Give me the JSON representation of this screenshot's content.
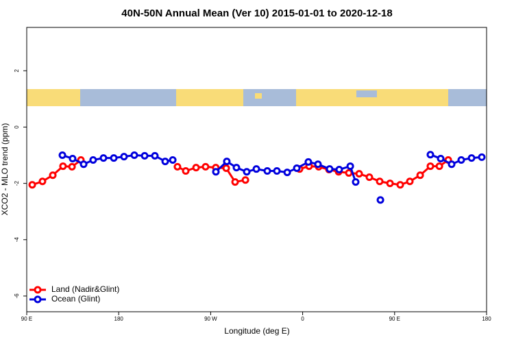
{
  "chart_data": {
    "type": "line",
    "title": "40N-50N Annual Mean (Ver 10)   2015-01-01 to 2020-12-18",
    "x_label": "Longitude (deg E)",
    "y_label": "XCO2 - MLO trend (ppm)",
    "xlim": [
      90,
      540
    ],
    "xticks": [
      {
        "value": 90,
        "label": "90 E"
      },
      180,
      {
        "value": 270,
        "label": "90 W"
      },
      {
        "value": 360,
        "label": "0"
      },
      {
        "value": 450,
        "label": "90 E"
      },
      {
        "value": 540,
        "label": "180"
      }
    ],
    "ylim": [
      -6.56,
      3.54
    ],
    "yticks": [
      2,
      0,
      -2,
      -4,
      -6
    ],
    "legend": "bottom-left",
    "series": [
      {
        "name": "Land (Nadir&Glint)",
        "color": "#ff0000",
        "x": [
          95.4,
          105.4,
          115.5,
          125.5,
          134.3,
          143,
          null,
          237.5,
          245.6,
          255.7,
          265,
          275,
          285.2,
          293.9,
          304,
          null,
          357,
          366.3,
          375.7,
          385.8,
          395.2,
          405.2,
          415.3,
          425.3,
          435.4,
          445.5,
          455.5,
          464.9,
          475,
          485,
          493.8,
          502.5
        ],
        "values": [
          -2.05,
          -1.93,
          -1.71,
          -1.39,
          -1.41,
          -1.17,
          null,
          -1.41,
          -1.56,
          -1.44,
          -1.41,
          -1.44,
          -1.46,
          -1.95,
          -1.88,
          null,
          -1.49,
          -1.39,
          -1.41,
          -1.51,
          -1.59,
          -1.63,
          -1.66,
          -1.78,
          -1.93,
          -2.0,
          -2.05,
          -1.93,
          -1.71,
          -1.39,
          -1.39,
          -1.17
        ]
      },
      {
        "name": "Ocean (Glint)",
        "color": "#0000dd",
        "x": [
          124.9,
          134.9,
          145.7,
          155,
          165.1,
          175.2,
          185.2,
          195.3,
          205.4,
          215.4,
          225.5,
          232.9,
          null,
          275.1,
          285.8,
          295.2,
          305.3,
          314.7,
          325.4,
          334.8,
          344.9,
          354.3,
          365.6,
          375,
          386.4,
          395.8,
          406.6,
          411.9,
          null,
          436.1,
          null,
          485,
          495.1,
          505.8,
          515.2,
          525.3,
          535.3
        ],
        "values": [
          -1.0,
          -1.12,
          -1.32,
          -1.17,
          -1.1,
          -1.1,
          -1.05,
          -1.0,
          -1.02,
          -1.02,
          -1.22,
          -1.17,
          null,
          -1.59,
          -1.22,
          -1.44,
          -1.59,
          -1.49,
          -1.56,
          -1.56,
          -1.61,
          -1.46,
          -1.24,
          -1.32,
          -1.49,
          -1.51,
          -1.39,
          -1.95,
          null,
          -2.59,
          null,
          -0.98,
          -1.12,
          -1.32,
          -1.17,
          -1.1,
          -1.07
        ]
      }
    ]
  }
}
